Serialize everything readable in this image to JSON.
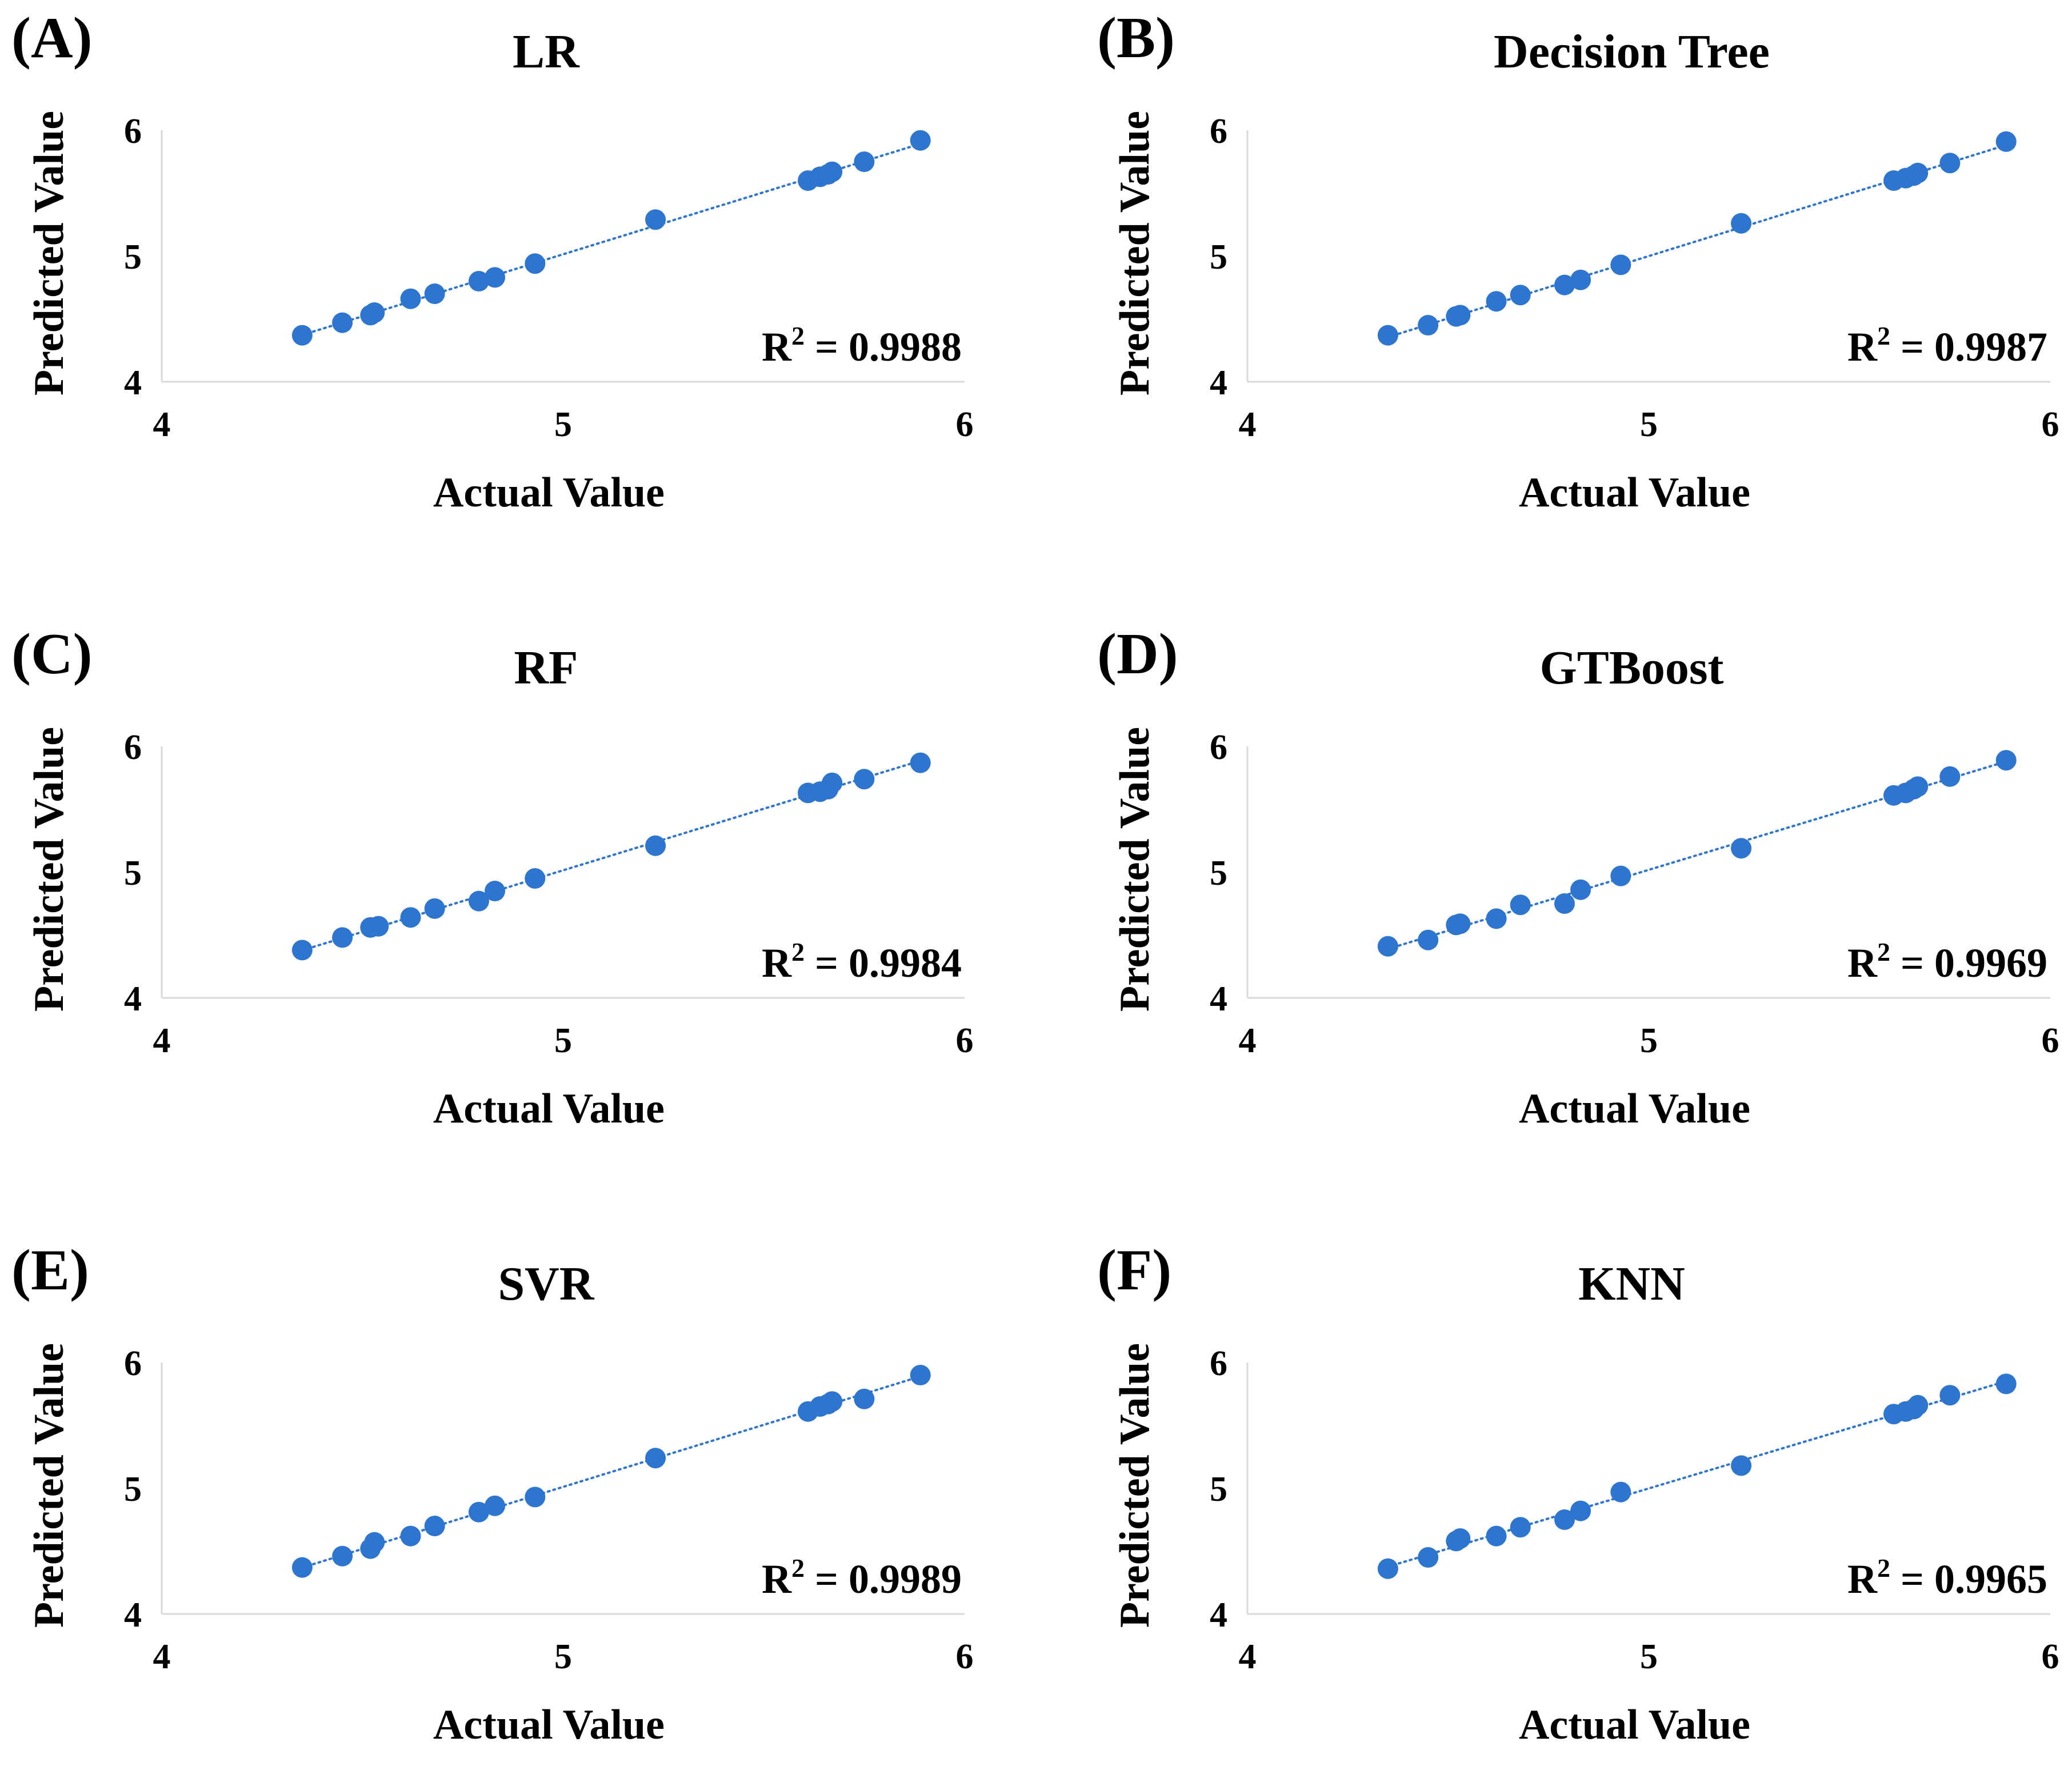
{
  "colors": {
    "marker": "#2E75CF",
    "trendline": "#2E75CF",
    "axis": "#D9D9D9",
    "text": "#000000"
  },
  "chart_data": [
    {
      "panel": "(A)",
      "type": "scatter",
      "title": "LR",
      "xlabel": "Actual Value",
      "ylabel": "Predicted Value",
      "xlim": [
        4,
        6
      ],
      "ylim": [
        4,
        6
      ],
      "xticks": [
        "4",
        "5",
        "6"
      ],
      "yticks": [
        "4",
        "5",
        "6"
      ],
      "grid": false,
      "trendline": "linear, dotted",
      "r2": {
        "prefix": "R",
        "sup": "2",
        "value": " = 0.9988"
      },
      "points": [
        [
          4.35,
          4.37
        ],
        [
          4.45,
          4.47
        ],
        [
          4.52,
          4.53
        ],
        [
          4.53,
          4.55
        ],
        [
          4.62,
          4.66
        ],
        [
          4.68,
          4.7
        ],
        [
          4.79,
          4.8
        ],
        [
          4.83,
          4.83
        ],
        [
          4.93,
          4.94
        ],
        [
          5.23,
          5.29
        ],
        [
          5.61,
          5.6
        ],
        [
          5.64,
          5.63
        ],
        [
          5.66,
          5.65
        ],
        [
          5.67,
          5.67
        ],
        [
          5.75,
          5.75
        ],
        [
          5.89,
          5.92
        ]
      ]
    },
    {
      "panel": "(B)",
      "type": "scatter",
      "title": "Decision Tree",
      "xlabel": "Actual Value",
      "ylabel": "Predicted Value",
      "xlim": [
        4,
        6
      ],
      "ylim": [
        4,
        6
      ],
      "xticks": [
        "4",
        "5",
        "6"
      ],
      "yticks": [
        "4",
        "5",
        "6"
      ],
      "grid": false,
      "trendline": "linear, dotted",
      "r2": {
        "prefix": "R",
        "sup": "2",
        "value": " = 0.9987"
      },
      "points": [
        [
          4.35,
          4.37
        ],
        [
          4.45,
          4.45
        ],
        [
          4.52,
          4.52
        ],
        [
          4.53,
          4.53
        ],
        [
          4.62,
          4.64
        ],
        [
          4.68,
          4.69
        ],
        [
          4.79,
          4.77
        ],
        [
          4.83,
          4.81
        ],
        [
          4.93,
          4.93
        ],
        [
          5.23,
          5.26
        ],
        [
          5.61,
          5.6
        ],
        [
          5.64,
          5.62
        ],
        [
          5.66,
          5.64
        ],
        [
          5.67,
          5.66
        ],
        [
          5.75,
          5.74
        ],
        [
          5.89,
          5.91
        ]
      ]
    },
    {
      "panel": "(C)",
      "type": "scatter",
      "title": "RF",
      "xlabel": "Actual Value",
      "ylabel": "Predicted Value",
      "xlim": [
        4,
        6
      ],
      "ylim": [
        4,
        6
      ],
      "xticks": [
        "4",
        "5",
        "6"
      ],
      "yticks": [
        "4",
        "5",
        "6"
      ],
      "grid": false,
      "trendline": "linear, dotted",
      "r2": {
        "prefix": "R",
        "sup": "2",
        "value": " = 0.9984"
      },
      "points": [
        [
          4.35,
          4.38
        ],
        [
          4.45,
          4.48
        ],
        [
          4.52,
          4.56
        ],
        [
          4.54,
          4.57
        ],
        [
          4.62,
          4.64
        ],
        [
          4.68,
          4.71
        ],
        [
          4.79,
          4.77
        ],
        [
          4.83,
          4.85
        ],
        [
          4.93,
          4.95
        ],
        [
          5.23,
          5.21
        ],
        [
          5.61,
          5.63
        ],
        [
          5.64,
          5.64
        ],
        [
          5.66,
          5.66
        ],
        [
          5.67,
          5.71
        ],
        [
          5.75,
          5.74
        ],
        [
          5.89,
          5.87
        ]
      ]
    },
    {
      "panel": "(D)",
      "type": "scatter",
      "title": "GTBoost",
      "xlabel": "Actual Value",
      "ylabel": "Predicted Value",
      "xlim": [
        4,
        6
      ],
      "ylim": [
        4,
        6
      ],
      "xticks": [
        "4",
        "5",
        "6"
      ],
      "yticks": [
        "4",
        "5",
        "6"
      ],
      "grid": false,
      "trendline": "linear, dotted",
      "r2": {
        "prefix": "R",
        "sup": "2",
        "value": " = 0.9969"
      },
      "points": [
        [
          4.35,
          4.41
        ],
        [
          4.45,
          4.46
        ],
        [
          4.52,
          4.58
        ],
        [
          4.53,
          4.59
        ],
        [
          4.62,
          4.63
        ],
        [
          4.68,
          4.74
        ],
        [
          4.79,
          4.75
        ],
        [
          4.83,
          4.86
        ],
        [
          4.93,
          4.97
        ],
        [
          5.23,
          5.19
        ],
        [
          5.61,
          5.61
        ],
        [
          5.64,
          5.63
        ],
        [
          5.66,
          5.66
        ],
        [
          5.67,
          5.68
        ],
        [
          5.75,
          5.76
        ],
        [
          5.89,
          5.89
        ]
      ]
    },
    {
      "panel": "(E)",
      "type": "scatter",
      "title": "SVR",
      "xlabel": "Actual Value",
      "ylabel": "Predicted Value",
      "xlim": [
        4,
        6
      ],
      "ylim": [
        4,
        6
      ],
      "xticks": [
        "4",
        "5",
        "6"
      ],
      "yticks": [
        "4",
        "5",
        "6"
      ],
      "grid": false,
      "trendline": "linear, dotted",
      "r2": {
        "prefix": "R",
        "sup": "2",
        "value": " = 0.9989"
      },
      "points": [
        [
          4.35,
          4.37
        ],
        [
          4.45,
          4.46
        ],
        [
          4.52,
          4.52
        ],
        [
          4.53,
          4.57
        ],
        [
          4.62,
          4.62
        ],
        [
          4.68,
          4.7
        ],
        [
          4.79,
          4.81
        ],
        [
          4.83,
          4.86
        ],
        [
          4.93,
          4.93
        ],
        [
          5.23,
          5.24
        ],
        [
          5.61,
          5.61
        ],
        [
          5.64,
          5.65
        ],
        [
          5.66,
          5.67
        ],
        [
          5.67,
          5.69
        ],
        [
          5.75,
          5.71
        ],
        [
          5.89,
          5.9
        ]
      ]
    },
    {
      "panel": "(F)",
      "type": "scatter",
      "title": "KNN",
      "xlabel": "Actual Value",
      "ylabel": "Predicted Value",
      "xlim": [
        4,
        6
      ],
      "ylim": [
        4,
        6
      ],
      "xticks": [
        "4",
        "5",
        "6"
      ],
      "yticks": [
        "4",
        "5",
        "6"
      ],
      "grid": false,
      "trendline": "linear, dotted",
      "r2": {
        "prefix": "R",
        "sup": "2",
        "value": " = 0.9965"
      },
      "points": [
        [
          4.35,
          4.36
        ],
        [
          4.45,
          4.45
        ],
        [
          4.52,
          4.58
        ],
        [
          4.53,
          4.6
        ],
        [
          4.62,
          4.62
        ],
        [
          4.68,
          4.69
        ],
        [
          4.79,
          4.75
        ],
        [
          4.83,
          4.82
        ],
        [
          4.93,
          4.97
        ],
        [
          5.23,
          5.18
        ],
        [
          5.61,
          5.59
        ],
        [
          5.64,
          5.61
        ],
        [
          5.66,
          5.63
        ],
        [
          5.67,
          5.66
        ],
        [
          5.75,
          5.74
        ],
        [
          5.89,
          5.83
        ]
      ]
    }
  ]
}
